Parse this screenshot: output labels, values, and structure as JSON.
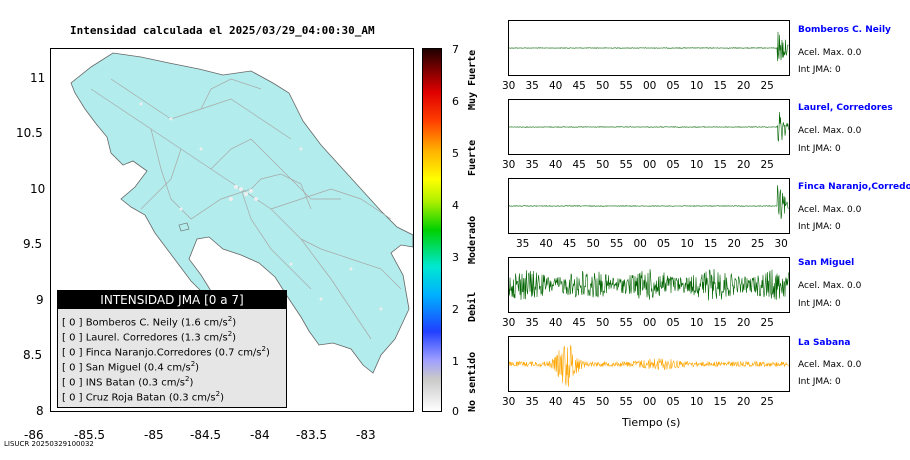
{
  "title": "Intensidad calculada el 2025/03/29_04:00:30_AM",
  "footer_id": "LISUCR 20250329100032",
  "colors": {
    "land": "#b2ecec",
    "sea": "#ffffff",
    "roads": "#aaaaaa",
    "green_trace": "#006400",
    "orange_trace": "#ffa500",
    "station_blue": "#0000ff"
  },
  "map": {
    "x_ticks": [
      "-86",
      "-85.5",
      "-85",
      "-84.5",
      "-84",
      "-83.5",
      "-83"
    ],
    "y_ticks": [
      "11",
      "10.5",
      "10",
      "9.5",
      "9",
      "8.5",
      "8"
    ],
    "xlim": [
      -86.35,
      -82.55
    ],
    "ylim": [
      8,
      11.5
    ]
  },
  "colorbar": {
    "labels": [
      "0",
      "1",
      "2",
      "3",
      "4",
      "5",
      "6",
      "7"
    ],
    "categories": [
      "No sentido",
      "Debil",
      "Moderado",
      "Fuerte",
      "Muy Fuerte"
    ]
  },
  "legend": {
    "title": "INTENSIDAD JMA [0 a 7]",
    "rows": [
      {
        "pre": "[ 0 ]  Bomberos C. Neily (1.6 cm/s",
        "sup": "2",
        "post": ")"
      },
      {
        "pre": "[ 0 ]  Laurel. Corredores (1.3 cm/s",
        "sup": "2",
        "post": ")"
      },
      {
        "pre": "[ 0 ]  Finca Naranjo.Corredores (0.7 cm/s",
        "sup": "2",
        "post": ")"
      },
      {
        "pre": "[ 0 ]  San Miguel (0.4 cm/s",
        "sup": "2",
        "post": ")"
      },
      {
        "pre": "[ 0 ]  INS Batan (0.3 cm/s",
        "sup": "2",
        "post": ")"
      },
      {
        "pre": "[ 0 ]  Cruz Roja Batan (0.3 cm/s",
        "sup": "2",
        "post": ")"
      }
    ]
  },
  "traces": [
    {
      "name": "Bomberos C. Neily",
      "acel": "Acel. Max. 0.0",
      "int": "Int JMA: 0",
      "color": "green",
      "style": "flat_burst",
      "ticks": [
        "30",
        "35",
        "40",
        "45",
        "50",
        "55",
        "00",
        "05",
        "10",
        "15",
        "20",
        "25"
      ]
    },
    {
      "name": "Laurel, Corredores",
      "acel": "Acel. Max. 0.0",
      "int": "Int JMA: 0",
      "color": "green",
      "style": "flat_burst",
      "ticks": [
        "30",
        "35",
        "40",
        "45",
        "50",
        "55",
        "00",
        "05",
        "10",
        "15",
        "20",
        "25"
      ]
    },
    {
      "name": "Finca Naranjo,Corredores",
      "acel": "Acel. Max. 0.0",
      "int": "Int JMA: 0",
      "color": "green",
      "style": "flat_burst",
      "ticks": [
        "35",
        "40",
        "45",
        "50",
        "55",
        "00",
        "05",
        "10",
        "15",
        "20",
        "25",
        "30"
      ]
    },
    {
      "name": "San Miguel",
      "acel": "Acel. Max. 0.0",
      "int": "Int JMA: 0",
      "color": "green",
      "style": "noise",
      "ticks": [
        "30",
        "35",
        "40",
        "45",
        "50",
        "55",
        "00",
        "05",
        "10",
        "15",
        "20",
        "25"
      ]
    },
    {
      "name": "La Sabana",
      "acel": "Acel. Max. 0.0",
      "int": "Int JMA: 0",
      "color": "orange",
      "style": "event",
      "ticks": [
        "30",
        "35",
        "40",
        "45",
        "50",
        "55",
        "00",
        "05",
        "10",
        "15",
        "20",
        "25"
      ]
    }
  ],
  "trace_xlabel": "Tiempo (s)"
}
